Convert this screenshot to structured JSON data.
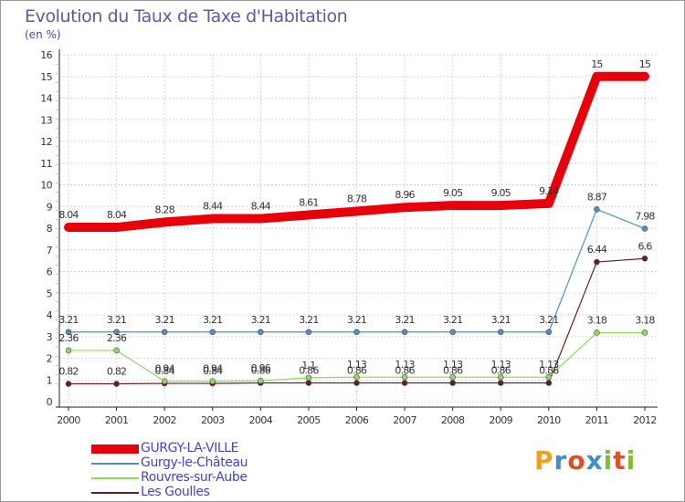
{
  "title": "Evolution du Taux de Taxe d'Habitation",
  "subtitle": "(en %)",
  "logo_text": "Proxiti",
  "chart_data": {
    "type": "line",
    "title": "Evolution du Taux de Taxe d'Habitation",
    "ylabel": "(en %)",
    "xlabel": "",
    "ylim": [
      0,
      16
    ],
    "yticks": [
      0,
      1,
      2,
      3,
      4,
      5,
      6,
      7,
      8,
      9,
      10,
      11,
      12,
      13,
      14,
      15,
      16
    ],
    "categories": [
      "2000",
      "2001",
      "2002",
      "2003",
      "2004",
      "2005",
      "2006",
      "2007",
      "2008",
      "2009",
      "2010",
      "2011",
      "2012"
    ],
    "series": [
      {
        "name": "GURGY-LA-VILLE",
        "color": "#e8000b",
        "values": [
          8.04,
          8.04,
          8.28,
          8.44,
          8.44,
          8.61,
          8.78,
          8.96,
          9.05,
          9.05,
          9.14,
          15,
          15
        ],
        "labels": [
          "8.04",
          "8.04",
          "8.28",
          "8.44",
          "8.44",
          "8.61",
          "8.78",
          "8.96",
          "9.05",
          "9.05",
          "9.14",
          "15",
          "15"
        ]
      },
      {
        "name": "Gurgy-le-Château",
        "color": "#4f8fc9",
        "values": [
          3.21,
          3.21,
          3.21,
          3.21,
          3.21,
          3.21,
          3.21,
          3.21,
          3.21,
          3.21,
          3.21,
          8.87,
          7.98
        ],
        "labels": [
          "3.21",
          "3.21",
          "3.21",
          "3.21",
          "3.21",
          "3.21",
          "3.21",
          "3.21",
          "3.21",
          "3.21",
          "3.21",
          "8.87",
          "7.98"
        ]
      },
      {
        "name": "Rouvres-sur-Aube",
        "color": "#8ed85a",
        "values": [
          2.36,
          2.36,
          0.94,
          0.94,
          0.96,
          1.1,
          1.13,
          1.13,
          1.13,
          1.13,
          1.13,
          3.18,
          3.18
        ],
        "labels": [
          "2.36",
          "2.36",
          "0.94",
          "0.94",
          "0.96",
          "1.1",
          "1.13",
          "1.13",
          "1.13",
          "1.13",
          "1.13",
          "3.18",
          "3.18"
        ]
      },
      {
        "name": "Les Goulles",
        "color": "#6b1c1c",
        "values": [
          0.82,
          0.82,
          0.84,
          0.84,
          0.86,
          0.86,
          0.86,
          0.86,
          0.86,
          0.86,
          0.86,
          6.44,
          6.6
        ],
        "labels": [
          "0.82",
          "0.82",
          "0.84",
          "0.84",
          "0.86",
          "0.86",
          "0.86",
          "0.86",
          "0.86",
          "0.86",
          "0.86",
          "6.44",
          "6.6"
        ]
      }
    ]
  }
}
